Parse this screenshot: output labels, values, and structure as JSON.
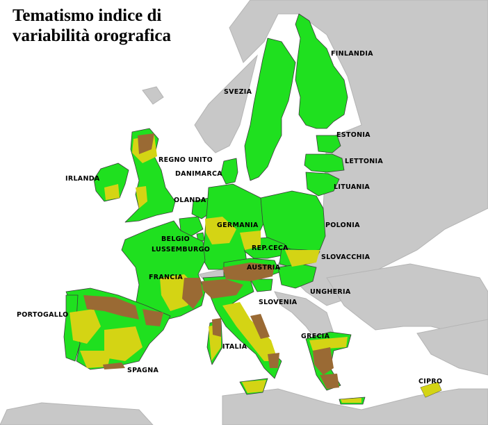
{
  "title": "Tematismo indice di\nvariabilità orografica",
  "colors": {
    "low": "#1fe01f",
    "medium": "#d4d414",
    "high": "#9a6a34",
    "non_eu_land": "#c8c8c8",
    "sea": "#ffffff",
    "borders": "#3a3a3a"
  },
  "countries": [
    {
      "id": "finlandia",
      "label": "FINLANDIA"
    },
    {
      "id": "svezia",
      "label": "SVEZIA"
    },
    {
      "id": "estonia",
      "label": "ESTONIA"
    },
    {
      "id": "lettonia",
      "label": "LETTONIA"
    },
    {
      "id": "lituania",
      "label": "LITUANIA"
    },
    {
      "id": "regno-unito",
      "label": "REGNO UNITO"
    },
    {
      "id": "danimarca",
      "label": "DANIMARCA"
    },
    {
      "id": "irlanda",
      "label": "IRLANDA"
    },
    {
      "id": "olanda",
      "label": "OLANDA"
    },
    {
      "id": "germania",
      "label": "GERMANIA"
    },
    {
      "id": "polonia",
      "label": "POLONIA"
    },
    {
      "id": "belgio",
      "label": "BELGIO"
    },
    {
      "id": "lussemburgo",
      "label": "LUSSEMBURGO"
    },
    {
      "id": "rep-ceca",
      "label": "REP.CECA"
    },
    {
      "id": "slovacchia",
      "label": "SLOVACCHIA"
    },
    {
      "id": "austria",
      "label": "AUSTRIA"
    },
    {
      "id": "francia",
      "label": "FRANCIA"
    },
    {
      "id": "ungheria",
      "label": "UNGHERIA"
    },
    {
      "id": "slovenia",
      "label": "SLOVENIA"
    },
    {
      "id": "portogallo",
      "label": "PORTOGALLO"
    },
    {
      "id": "grecia",
      "label": "GRECIA"
    },
    {
      "id": "italia",
      "label": "ITALIA"
    },
    {
      "id": "spagna",
      "label": "SPAGNA"
    },
    {
      "id": "cipro",
      "label": "CIPRO"
    }
  ]
}
